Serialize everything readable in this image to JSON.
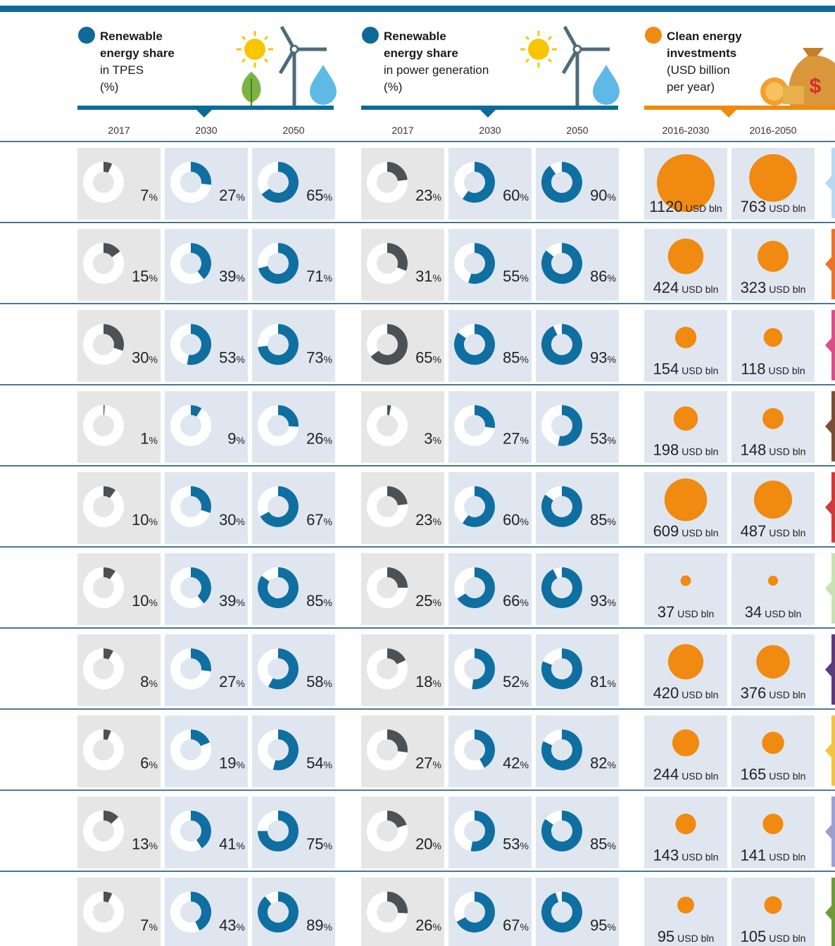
{
  "percent_unit": "%",
  "invest_unit": "USD bln",
  "groups": [
    {
      "title_lines": [
        "Renewable",
        "energy share"
      ],
      "sub_lines": [
        "in TPES",
        "(%)"
      ],
      "years": [
        "2017",
        "2030",
        "2050"
      ]
    },
    {
      "title_lines": [
        "Renewable",
        "energy share"
      ],
      "sub_lines": [
        "in power generation",
        "(%)"
      ],
      "years": [
        "2017",
        "2030",
        "2050"
      ]
    },
    {
      "title_lines": [
        "Clean energy",
        "investments"
      ],
      "sub_lines": [
        "(USD billion",
        "per year)"
      ],
      "years": [
        "2016-2030",
        "2016-2050"
      ]
    }
  ],
  "rows": [
    {
      "values": [
        [
          7,
          27,
          65
        ],
        [
          23,
          60,
          90
        ],
        [
          1120,
          763
        ]
      ]
    },
    {
      "values": [
        [
          15,
          39,
          71
        ],
        [
          31,
          55,
          86
        ],
        [
          424,
          323
        ]
      ]
    },
    {
      "values": [
        [
          30,
          53,
          73
        ],
        [
          65,
          85,
          93
        ],
        [
          154,
          118
        ]
      ]
    },
    {
      "values": [
        [
          1,
          9,
          26
        ],
        [
          3,
          27,
          53
        ],
        [
          198,
          148
        ]
      ]
    },
    {
      "values": [
        [
          10,
          30,
          67
        ],
        [
          23,
          60,
          85
        ],
        [
          609,
          487
        ]
      ]
    },
    {
      "values": [
        [
          10,
          39,
          85
        ],
        [
          25,
          66,
          93
        ],
        [
          37,
          34
        ]
      ]
    },
    {
      "values": [
        [
          8,
          27,
          58
        ],
        [
          18,
          52,
          81
        ],
        [
          420,
          376
        ]
      ]
    },
    {
      "values": [
        [
          6,
          19,
          54
        ],
        [
          27,
          42,
          82
        ],
        [
          244,
          165
        ]
      ]
    },
    {
      "values": [
        [
          13,
          41,
          75
        ],
        [
          20,
          53,
          85
        ],
        [
          143,
          141
        ]
      ]
    },
    {
      "values": [
        [
          7,
          43,
          89
        ],
        [
          26,
          67,
          95
        ],
        [
          95,
          105
        ]
      ]
    }
  ]
}
